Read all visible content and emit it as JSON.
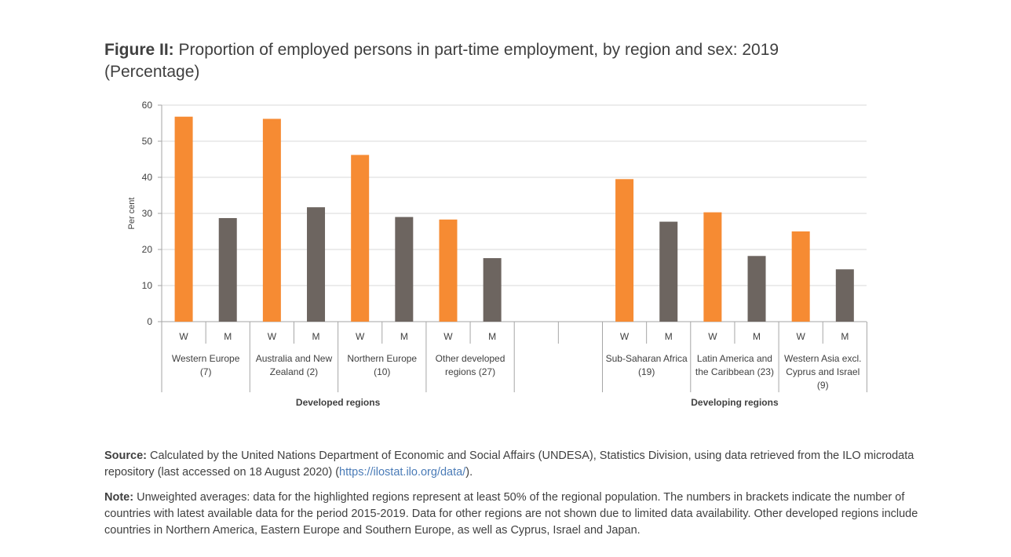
{
  "title": {
    "prefix": "Figure II:",
    "text": "Proportion of employed persons in part-time employment, by region and sex: 2019",
    "subtitle": "(Percentage)"
  },
  "chart_data": {
    "type": "bar",
    "ylabel": "Per cent",
    "ylim": [
      0,
      60
    ],
    "yticks": [
      0,
      10,
      20,
      30,
      40,
      50,
      60
    ],
    "grid": true,
    "sex_labels": [
      "W",
      "M"
    ],
    "colors": {
      "W": "#f68b33",
      "M": "#6d6560"
    },
    "groups": [
      {
        "label": "Developed regions",
        "regions": [
          {
            "name_lines": [
              "Western Europe",
              "(7)"
            ],
            "W": 56.8,
            "M": 28.7
          },
          {
            "name_lines": [
              "Australia and New",
              "Zealand (2)"
            ],
            "W": 56.2,
            "M": 31.7
          },
          {
            "name_lines": [
              "Northern Europe",
              "(10)"
            ],
            "W": 46.2,
            "M": 29.0
          },
          {
            "name_lines": [
              "Other developed",
              "regions (27)"
            ],
            "W": 28.3,
            "M": 17.6
          }
        ]
      },
      {
        "label": "Developing regions",
        "regions": [
          {
            "name_lines": [
              "Sub-Saharan Africa",
              "(19)"
            ],
            "W": 39.5,
            "M": 27.7
          },
          {
            "name_lines": [
              "Latin America and",
              "the Caribbean (23)"
            ],
            "W": 30.3,
            "M": 18.2
          },
          {
            "name_lines": [
              "Western Asia excl.",
              "Cyprus and Israel",
              "(9)"
            ],
            "W": 25.0,
            "M": 14.5
          }
        ]
      }
    ]
  },
  "source": {
    "label": "Source:",
    "text": "Calculated by the United Nations Department of Economic and Social Affairs (UNDESA), Statistics Division, using data retrieved from the ILO microdata repository (last accessed on 18 August 2020) (",
    "link": "https://ilostat.ilo.org/data/",
    "suffix": ")."
  },
  "note": {
    "label": "Note:",
    "text": "Unweighted averages: data for the highlighted regions represent at least 50% of the regional population. The numbers in brackets indicate the number of countries with latest available data for the period 2015-2019. Data for other regions are not shown due to limited data availability. Other developed regions include countries in Northern America, Eastern Europe and Southern Europe, as well as Cyprus, Israel and Japan."
  }
}
